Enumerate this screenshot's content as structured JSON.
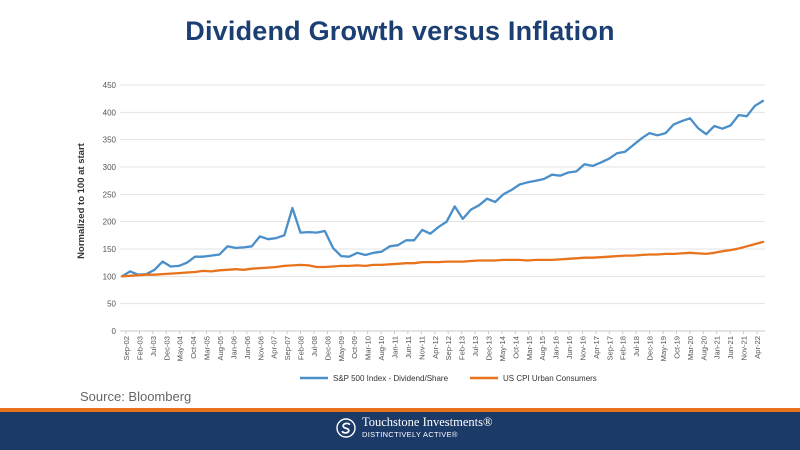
{
  "page": {
    "source": "Source: Bloomberg",
    "brand_name": "Touchstone Investments®",
    "brand_tagline": "DISTINCTIVELY ACTIVE®"
  },
  "chart_data": {
    "type": "line",
    "title": "Dividend Growth versus Inflation",
    "xlabel": "",
    "ylabel": "Normalized to 100 at start",
    "ylim": [
      0,
      450
    ],
    "yticks": [
      0,
      50,
      100,
      150,
      200,
      250,
      300,
      350,
      400,
      450
    ],
    "grid": "horizontal",
    "legend": "bottom",
    "x_tick_labels": [
      "Sep-02",
      "Feb-03",
      "Jul-03",
      "Dec-03",
      "May-04",
      "Oct-04",
      "Mar-05",
      "Aug-05",
      "Jan-06",
      "Jun-06",
      "Nov-06",
      "Apr-07",
      "Sep-07",
      "Feb-08",
      "Jul-08",
      "Dec-08",
      "May-09",
      "Oct-09",
      "Mar-10",
      "Aug-10",
      "Jan-11",
      "Jun-11",
      "Nov-11",
      "Apr-12",
      "Sep-12",
      "Feb-13",
      "Jul-13",
      "Dec-13",
      "May-14",
      "Oct-14",
      "Mar-15",
      "Aug-15",
      "Jan-16",
      "Jun-16",
      "Nov-16",
      "Apr-17",
      "Sep-17",
      "Feb-18",
      "Jul-18",
      "Dec-18",
      "May-19",
      "Oct-19",
      "Mar-20",
      "Aug-20",
      "Jan-21",
      "Jun-21",
      "Nov-21",
      "Apr-22"
    ],
    "series": [
      {
        "name": "S&P 500 Index - Dividend/Share",
        "color": "#4a8fc9",
        "values": [
          100,
          109,
          103,
          104,
          112,
          127,
          118,
          119,
          125,
          136,
          136,
          138,
          140,
          155,
          152,
          153,
          155,
          173,
          168,
          170,
          175,
          225,
          180,
          181,
          180,
          183,
          152,
          137,
          136,
          143,
          139,
          143,
          145,
          155,
          157,
          166,
          166,
          185,
          178,
          190,
          200,
          228,
          205,
          222,
          230,
          242,
          236,
          250,
          258,
          268,
          272,
          275,
          278,
          286,
          284,
          290,
          292,
          305,
          302,
          308,
          315,
          325,
          328,
          340,
          352,
          362,
          358,
          362,
          378,
          384,
          389,
          371,
          360,
          375,
          370,
          376,
          395,
          393,
          412,
          421
        ]
      },
      {
        "name": "US CPI Urban Consumers",
        "color": "#e8731c",
        "values": [
          100,
          101,
          102,
          103,
          103,
          104,
          105,
          106,
          107,
          108,
          110,
          109,
          111,
          112,
          113,
          112,
          114,
          115,
          116,
          117,
          119,
          120,
          121,
          120,
          117,
          117,
          118,
          119,
          119,
          120,
          119,
          121,
          121,
          122,
          123,
          124,
          124,
          126,
          126,
          126,
          127,
          127,
          127,
          128,
          129,
          129,
          129,
          130,
          130,
          130,
          129,
          130,
          130,
          130,
          131,
          132,
          133,
          134,
          134,
          135,
          136,
          137,
          138,
          138,
          139,
          140,
          140,
          141,
          141,
          142,
          143,
          142,
          141,
          143,
          146,
          148,
          151,
          155,
          159,
          163
        ]
      }
    ]
  }
}
